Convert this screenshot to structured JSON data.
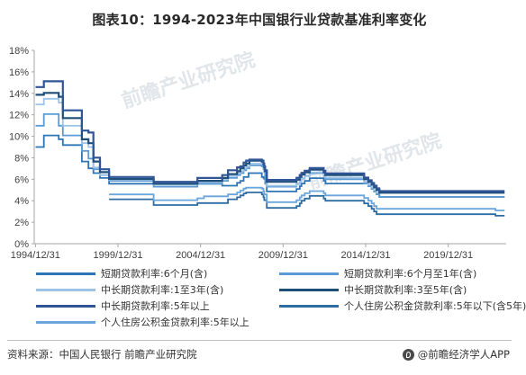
{
  "title": "图表10：1994-2023年中国银行业贷款基准利率变化",
  "watermarks": [
    "前瞻产业研究院",
    "前瞻产业研究院"
  ],
  "footer": {
    "source": "资料来源：中国人民银行  前瞻产业研究院",
    "brand": "@前瞻经济学人APP"
  },
  "chart_data": {
    "type": "line",
    "xlabel": "",
    "ylabel": "",
    "xlim": [
      1994.917,
      2023.5
    ],
    "ylim": [
      0,
      18
    ],
    "x_ticks": [
      1994.99,
      1999.99,
      2004.99,
      2009.99,
      2014.99,
      2019.99
    ],
    "x_tick_labels": [
      "1994/12/31",
      "1999/12/31",
      "2004/12/31",
      "2009/12/31",
      "2014/12/31",
      "2019/12/31"
    ],
    "y_ticks": [
      0,
      2,
      4,
      6,
      8,
      10,
      12,
      14,
      16,
      18
    ],
    "y_tick_labels": [
      "0%",
      "2%",
      "4%",
      "6%",
      "8%",
      "10%",
      "12%",
      "14%",
      "16%",
      "18%"
    ],
    "grid": false,
    "legend_position": "bottom",
    "series": [
      {
        "name": "短期贷款利率:6个月(含)",
        "color": "#2e75b6",
        "points": [
          [
            1995,
            9.0
          ],
          [
            1995.5,
            10.08
          ],
          [
            1996.4,
            9.72
          ],
          [
            1996.65,
            9.18
          ],
          [
            1997.8,
            7.65
          ],
          [
            1998.2,
            7.02
          ],
          [
            1998.5,
            6.57
          ],
          [
            1998.9,
            6.12
          ],
          [
            1999.45,
            5.58
          ],
          [
            2004.8,
            5.58
          ],
          [
            2006.3,
            5.4
          ],
          [
            2007.2,
            5.67
          ],
          [
            2007.4,
            5.85
          ],
          [
            2007.6,
            6.21
          ],
          [
            2007.9,
            6.57
          ],
          [
            2008.7,
            6.21
          ],
          [
            2008.8,
            6.12
          ],
          [
            2008.85,
            6.03
          ],
          [
            2009.0,
            4.86
          ],
          [
            2010.8,
            5.1
          ],
          [
            2011.0,
            5.35
          ],
          [
            2011.1,
            5.6
          ],
          [
            2011.3,
            5.85
          ],
          [
            2011.6,
            6.1
          ],
          [
            2012.45,
            5.85
          ],
          [
            2012.55,
            5.6
          ],
          [
            2014.9,
            5.6
          ],
          [
            2015.15,
            5.35
          ],
          [
            2015.35,
            5.1
          ],
          [
            2015.5,
            4.85
          ],
          [
            2015.65,
            4.6
          ],
          [
            2015.82,
            4.35
          ],
          [
            2023.4,
            4.35
          ]
        ]
      },
      {
        "name": "短期贷款利率:6个月至1年(含)",
        "color": "#5b9bd5",
        "points": [
          [
            1995,
            10.98
          ],
          [
            1995.5,
            12.06
          ],
          [
            1996.4,
            10.98
          ],
          [
            1996.65,
            10.08
          ],
          [
            1997.8,
            8.64
          ],
          [
            1998.2,
            7.92
          ],
          [
            1998.5,
            6.93
          ],
          [
            1998.9,
            6.39
          ],
          [
            1999.45,
            5.85
          ],
          [
            2002.15,
            5.31
          ],
          [
            2004.8,
            5.58
          ],
          [
            2006.3,
            5.85
          ],
          [
            2006.65,
            6.12
          ],
          [
            2007.2,
            6.39
          ],
          [
            2007.4,
            6.57
          ],
          [
            2007.6,
            6.84
          ],
          [
            2007.75,
            7.02
          ],
          [
            2007.95,
            7.29
          ],
          [
            2008.7,
            7.2
          ],
          [
            2008.8,
            6.93
          ],
          [
            2008.85,
            6.66
          ],
          [
            2008.9,
            5.58
          ],
          [
            2009.0,
            5.31
          ],
          [
            2010.8,
            5.56
          ],
          [
            2011.0,
            5.81
          ],
          [
            2011.1,
            6.06
          ],
          [
            2011.3,
            6.31
          ],
          [
            2011.6,
            6.56
          ],
          [
            2012.45,
            6.31
          ],
          [
            2012.55,
            6.0
          ],
          [
            2014.9,
            5.6
          ],
          [
            2015.15,
            5.35
          ],
          [
            2015.35,
            5.1
          ],
          [
            2015.5,
            4.85
          ],
          [
            2015.65,
            4.6
          ],
          [
            2015.82,
            4.35
          ],
          [
            2019.7,
            4.35
          ],
          [
            2023.4,
            4.35
          ]
        ]
      },
      {
        "name": "中长期贷款利率:1至3年(含)",
        "color": "#9dc3e6",
        "points": [
          [
            1995,
            12.96
          ],
          [
            1995.5,
            13.5
          ],
          [
            1996.4,
            13.14
          ],
          [
            1996.65,
            10.98
          ],
          [
            1997.8,
            9.36
          ],
          [
            1998.2,
            9.0
          ],
          [
            1998.5,
            7.11
          ],
          [
            1998.9,
            6.39
          ],
          [
            1999.45,
            5.94
          ],
          [
            2002.15,
            5.49
          ],
          [
            2004.8,
            5.76
          ],
          [
            2006.3,
            6.03
          ],
          [
            2006.65,
            6.3
          ],
          [
            2007.2,
            6.57
          ],
          [
            2007.4,
            6.75
          ],
          [
            2007.6,
            7.02
          ],
          [
            2007.75,
            7.2
          ],
          [
            2007.95,
            7.47
          ],
          [
            2008.7,
            7.56
          ],
          [
            2008.8,
            7.29
          ],
          [
            2008.85,
            7.02
          ],
          [
            2008.9,
            6.66
          ],
          [
            2009.0,
            5.4
          ],
          [
            2010.8,
            5.6
          ],
          [
            2011.0,
            5.85
          ],
          [
            2011.1,
            6.1
          ],
          [
            2011.3,
            6.35
          ],
          [
            2011.6,
            6.65
          ],
          [
            2012.45,
            6.4
          ],
          [
            2012.55,
            6.15
          ],
          [
            2014.9,
            5.75
          ],
          [
            2015.15,
            5.5
          ],
          [
            2015.35,
            5.25
          ],
          [
            2015.5,
            5.0
          ],
          [
            2015.65,
            4.75
          ],
          [
            2015.82,
            4.75
          ],
          [
            2019.7,
            4.75
          ],
          [
            2023.4,
            4.75
          ]
        ]
      },
      {
        "name": "中长期贷款利率:3至5年(含)",
        "color": "#1f4e79",
        "points": [
          [
            1995,
            13.86
          ],
          [
            1995.5,
            14.04
          ],
          [
            1996.4,
            13.68
          ],
          [
            1996.65,
            11.7
          ],
          [
            1997.8,
            9.72
          ],
          [
            1998.2,
            9.36
          ],
          [
            1998.5,
            7.65
          ],
          [
            1998.9,
            6.66
          ],
          [
            1999.45,
            6.03
          ],
          [
            2002.15,
            5.58
          ],
          [
            2004.8,
            5.85
          ],
          [
            2006.3,
            6.12
          ],
          [
            2006.65,
            6.48
          ],
          [
            2007.2,
            6.75
          ],
          [
            2007.4,
            7.02
          ],
          [
            2007.6,
            7.29
          ],
          [
            2007.75,
            7.47
          ],
          [
            2007.95,
            7.74
          ],
          [
            2008.7,
            7.65
          ],
          [
            2008.8,
            7.38
          ],
          [
            2008.85,
            7.11
          ],
          [
            2008.9,
            6.75
          ],
          [
            2009.0,
            5.76
          ],
          [
            2010.8,
            5.96
          ],
          [
            2011.0,
            6.22
          ],
          [
            2011.1,
            6.45
          ],
          [
            2011.3,
            6.65
          ],
          [
            2011.6,
            6.9
          ],
          [
            2012.45,
            6.65
          ],
          [
            2012.55,
            6.4
          ],
          [
            2014.9,
            6.0
          ],
          [
            2015.15,
            5.75
          ],
          [
            2015.35,
            5.5
          ],
          [
            2015.5,
            5.25
          ],
          [
            2015.65,
            5.0
          ],
          [
            2015.82,
            4.75
          ],
          [
            2019.7,
            4.75
          ],
          [
            2023.4,
            4.75
          ]
        ]
      },
      {
        "name": "中长期贷款利率:5年以上",
        "color": "#2f5597",
        "points": [
          [
            1995,
            14.58
          ],
          [
            1995.5,
            15.12
          ],
          [
            1996.4,
            15.12
          ],
          [
            1996.65,
            12.42
          ],
          [
            1997.8,
            10.53
          ],
          [
            1998.2,
            10.35
          ],
          [
            1998.5,
            8.01
          ],
          [
            1998.9,
            6.93
          ],
          [
            1999.45,
            6.21
          ],
          [
            2002.15,
            5.76
          ],
          [
            2004.8,
            6.12
          ],
          [
            2006.3,
            6.39
          ],
          [
            2006.65,
            6.84
          ],
          [
            2007.2,
            7.11
          ],
          [
            2007.4,
            7.2
          ],
          [
            2007.6,
            7.56
          ],
          [
            2007.75,
            7.74
          ],
          [
            2007.95,
            7.83
          ],
          [
            2008.7,
            7.74
          ],
          [
            2008.8,
            7.47
          ],
          [
            2008.85,
            7.2
          ],
          [
            2008.9,
            6.84
          ],
          [
            2009.0,
            5.94
          ],
          [
            2010.8,
            6.14
          ],
          [
            2011.0,
            6.4
          ],
          [
            2011.1,
            6.6
          ],
          [
            2011.3,
            6.8
          ],
          [
            2011.6,
            7.05
          ],
          [
            2012.45,
            6.8
          ],
          [
            2012.55,
            6.55
          ],
          [
            2014.9,
            6.15
          ],
          [
            2015.15,
            5.9
          ],
          [
            2015.35,
            5.65
          ],
          [
            2015.5,
            5.4
          ],
          [
            2015.65,
            5.15
          ],
          [
            2015.82,
            4.9
          ],
          [
            2019.7,
            4.9
          ],
          [
            2023.4,
            4.9
          ]
        ]
      },
      {
        "name": "个人住房公积金贷款利率:5年以下(含5年)",
        "color": "#2e6da4",
        "points": [
          [
            1999.45,
            4.14
          ],
          [
            2002.15,
            3.6
          ],
          [
            2004.8,
            3.78
          ],
          [
            2005.2,
            3.78
          ],
          [
            2006.65,
            4.14
          ],
          [
            2007.2,
            4.32
          ],
          [
            2007.4,
            4.5
          ],
          [
            2007.6,
            4.68
          ],
          [
            2007.75,
            4.77
          ],
          [
            2007.95,
            4.77
          ],
          [
            2008.7,
            4.59
          ],
          [
            2008.8,
            4.32
          ],
          [
            2008.85,
            4.05
          ],
          [
            2009.0,
            3.33
          ],
          [
            2010.8,
            3.5
          ],
          [
            2011.0,
            3.75
          ],
          [
            2011.1,
            4.0
          ],
          [
            2011.3,
            4.2
          ],
          [
            2011.6,
            4.45
          ],
          [
            2012.45,
            4.2
          ],
          [
            2012.55,
            4.0
          ],
          [
            2014.9,
            3.75
          ],
          [
            2015.15,
            3.5
          ],
          [
            2015.35,
            3.25
          ],
          [
            2015.5,
            3.0
          ],
          [
            2015.65,
            2.75
          ],
          [
            2022.75,
            2.75
          ],
          [
            2022.85,
            2.6
          ],
          [
            2023.4,
            2.6
          ]
        ]
      },
      {
        "name": "个人住房公积金贷款利率:5年以上",
        "color": "#6aa6dc",
        "points": [
          [
            1999.45,
            4.59
          ],
          [
            2002.15,
            4.05
          ],
          [
            2004.8,
            4.23
          ],
          [
            2005.2,
            4.41
          ],
          [
            2006.65,
            4.59
          ],
          [
            2007.2,
            4.77
          ],
          [
            2007.4,
            4.95
          ],
          [
            2007.6,
            5.13
          ],
          [
            2007.75,
            5.22
          ],
          [
            2007.95,
            5.22
          ],
          [
            2008.7,
            5.13
          ],
          [
            2008.8,
            4.86
          ],
          [
            2008.85,
            4.59
          ],
          [
            2009.0,
            3.87
          ],
          [
            2010.8,
            4.05
          ],
          [
            2011.0,
            4.3
          ],
          [
            2011.1,
            4.5
          ],
          [
            2011.3,
            4.7
          ],
          [
            2011.6,
            4.9
          ],
          [
            2012.45,
            4.7
          ],
          [
            2012.55,
            4.5
          ],
          [
            2014.9,
            4.25
          ],
          [
            2015.15,
            4.0
          ],
          [
            2015.35,
            3.75
          ],
          [
            2015.5,
            3.5
          ],
          [
            2015.65,
            3.25
          ],
          [
            2022.75,
            3.25
          ],
          [
            2022.85,
            3.1
          ],
          [
            2023.4,
            3.1
          ]
        ]
      }
    ]
  }
}
